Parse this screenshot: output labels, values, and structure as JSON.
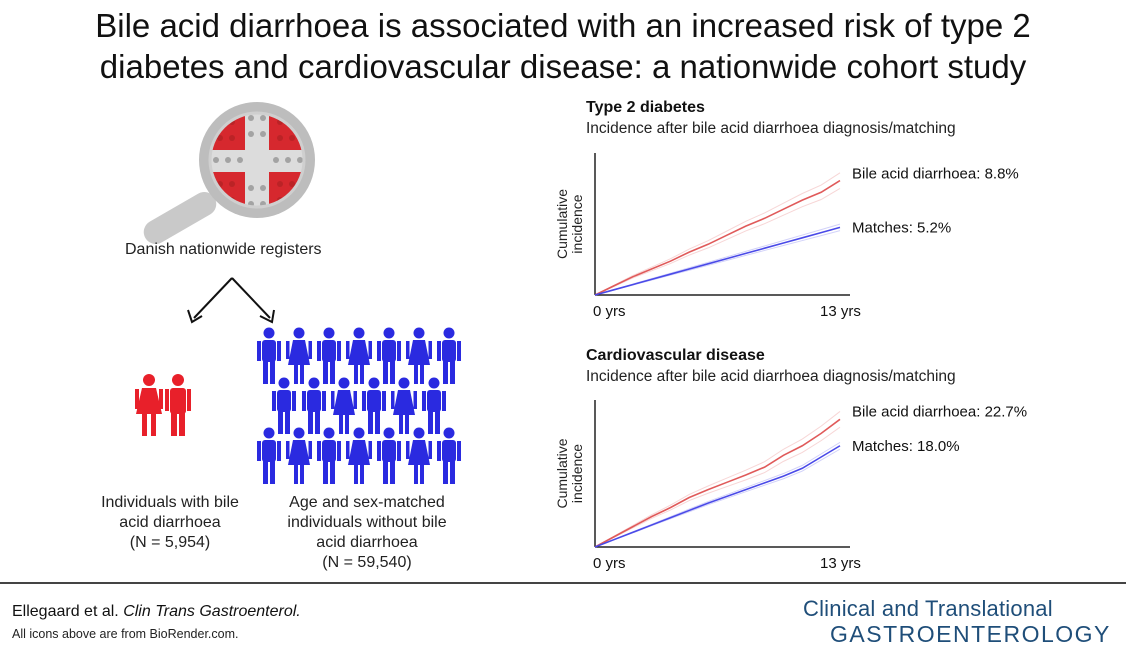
{
  "title_line1": "Bile acid diarrhoea is associated with an increased risk of type 2",
  "title_line2": "diabetes and cardiovascular disease: a nationwide cohort study",
  "left": {
    "registers_label": "Danish nationwide registers",
    "group1_line1": "Individuals with bile",
    "group1_line2": "acid diarrhoea",
    "group1_line3": "(N = 5,954)",
    "group2_line1": "Age and sex-matched",
    "group2_line2": "individuals without bile",
    "group2_line3": "acid diarrhoea",
    "group2_line4": "(N = 59,540)"
  },
  "colors": {
    "red": "#e8202a",
    "blue": "#2a2ae0",
    "case_line": "#e05a5a",
    "match_line": "#4a4ae8",
    "journal": "#1f4e79"
  },
  "chart_data": [
    {
      "type": "line",
      "title": "Type 2 diabetes",
      "subtitle": "Incidence after bile acid diarrhoea diagnosis/matching",
      "ylabel": "Cumulative incidence",
      "x_tick_labels": [
        "0 yrs",
        "13 yrs"
      ],
      "x": [
        0,
        1,
        2,
        3,
        4,
        5,
        6,
        7,
        8,
        9,
        10,
        11,
        12,
        13
      ],
      "series": [
        {
          "name": "Bile acid diarrhoea: 8.8%",
          "values": [
            0,
            0.7,
            1.4,
            2.0,
            2.6,
            3.3,
            3.9,
            4.6,
            5.3,
            5.9,
            6.6,
            7.3,
            7.9,
            8.8
          ]
        },
        {
          "name": "Matches: 5.2%",
          "values": [
            0,
            0.4,
            0.8,
            1.2,
            1.6,
            2.0,
            2.4,
            2.8,
            3.2,
            3.6,
            4.0,
            4.4,
            4.8,
            5.2
          ]
        }
      ]
    },
    {
      "type": "line",
      "title": "Cardiovascular disease",
      "subtitle": "Incidence after bile acid diarrhoea diagnosis/matching",
      "ylabel": "Cumulative incidence",
      "x_tick_labels": [
        "0 yrs",
        "13 yrs"
      ],
      "x": [
        0,
        1,
        2,
        3,
        4,
        5,
        6,
        7,
        8,
        9,
        10,
        11,
        12,
        13
      ],
      "series": [
        {
          "name": "Bile acid diarrhoea: 22.7%",
          "values": [
            0,
            1.8,
            3.6,
            5.4,
            7.0,
            8.8,
            10.2,
            11.5,
            12.8,
            14.2,
            16.3,
            18.0,
            20.2,
            22.7
          ]
        },
        {
          "name": "Matches: 18.0%",
          "values": [
            0,
            1.3,
            2.6,
            3.9,
            5.2,
            6.5,
            7.8,
            9.0,
            10.2,
            11.4,
            12.6,
            14.0,
            16.0,
            18.0
          ]
        }
      ]
    }
  ],
  "footer": {
    "citation_authors": "Ellegaard et al.",
    "citation_journal": "Clin Trans Gastroenterol.",
    "credit": "All icons above are from BioRender.com.",
    "journal_line1": "Clinical and Translational",
    "journal_line2": "GASTROENTEROLOGY"
  }
}
